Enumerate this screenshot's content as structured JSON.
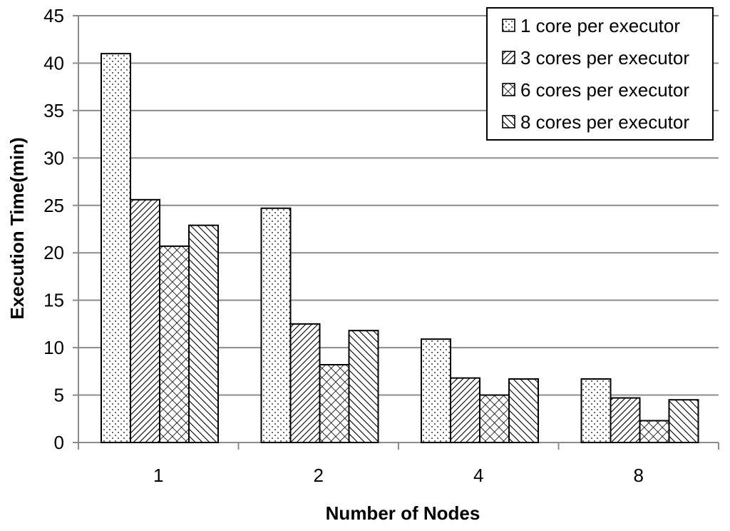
{
  "chart_data": {
    "type": "bar",
    "title": "",
    "xlabel": "Number of Nodes",
    "ylabel": "Execution Time(min)",
    "categories": [
      "1",
      "2",
      "4",
      "8"
    ],
    "ylim": [
      0,
      45
    ],
    "yticks": [
      0,
      5,
      10,
      15,
      20,
      25,
      30,
      35,
      40,
      45
    ],
    "grid": true,
    "legend_position": "top-right",
    "series": [
      {
        "name": "1 core per executor",
        "pattern": "dots",
        "values": [
          41.0,
          24.7,
          10.9,
          6.7
        ]
      },
      {
        "name": "3 cores per executor",
        "pattern": "diagonal-dense",
        "values": [
          25.6,
          12.5,
          6.8,
          4.7
        ]
      },
      {
        "name": "6 cores per executor",
        "pattern": "crosshatch",
        "values": [
          20.7,
          8.2,
          5.0,
          2.3
        ]
      },
      {
        "name": "8 cores per executor",
        "pattern": "diagonal-wide",
        "values": [
          22.9,
          11.8,
          6.7,
          4.5
        ]
      }
    ]
  }
}
